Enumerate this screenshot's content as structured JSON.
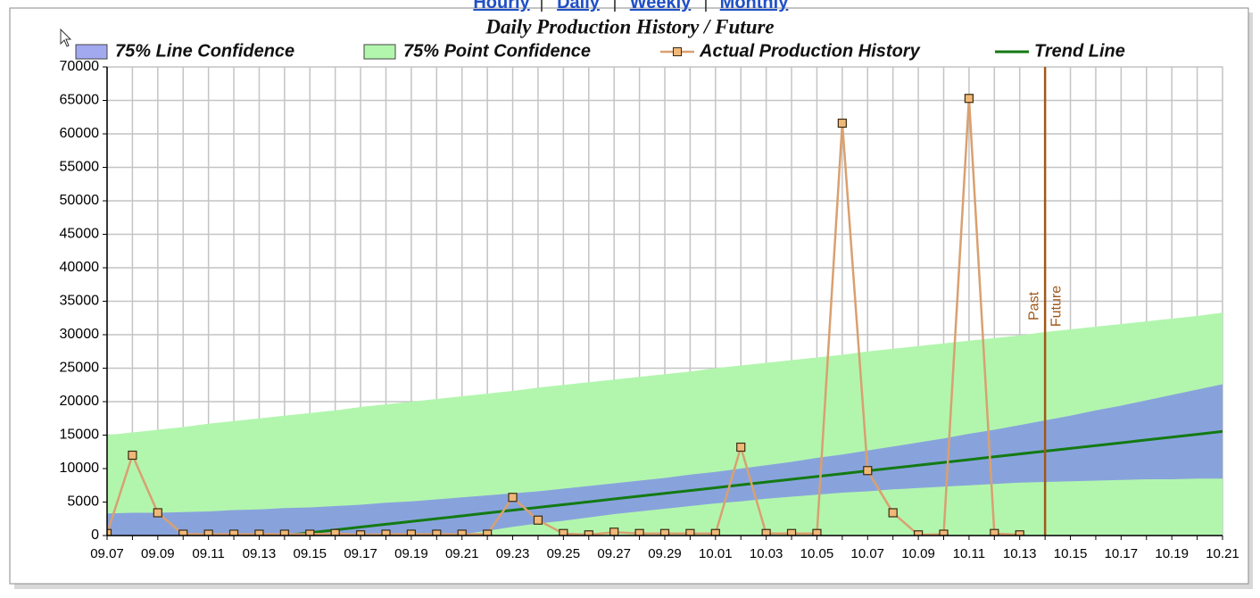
{
  "nav_links": [
    "Hourly",
    "Daily",
    "Weekly",
    "Monthly"
  ],
  "nav_separator": "|",
  "chart_data": {
    "type": "line",
    "title": "Daily Production History / Future",
    "categories": [
      "09.07",
      null,
      "09.09",
      null,
      "09.11",
      null,
      "09.13",
      null,
      "09.15",
      null,
      "09.17",
      null,
      "09.19",
      null,
      "09.21",
      null,
      "09.23",
      null,
      "09.25",
      null,
      "09.27",
      null,
      "09.29",
      null,
      "10.01",
      null,
      "10.03",
      null,
      "10.05",
      null,
      "10.07",
      null,
      "10.09",
      null,
      "10.11",
      null,
      "10.13",
      null,
      "10.15",
      null,
      "10.17",
      null,
      "10.19",
      null,
      "10.21"
    ],
    "ylim": [
      0,
      70000
    ],
    "yticks": [
      0,
      5000,
      10000,
      15000,
      20000,
      25000,
      30000,
      35000,
      40000,
      45000,
      50000,
      55000,
      60000,
      65000,
      70000
    ],
    "grid": true,
    "series": [
      {
        "name": "75% Line Confidence",
        "kind": "band",
        "color": "#88a3dc",
        "legend_color": "#a3a9ee",
        "values": [
          3300,
          3400,
          3400,
          3500,
          3600,
          3800,
          3900,
          4100,
          4200,
          4400,
          4600,
          4900,
          5100,
          5400,
          5700,
          6000,
          6300,
          6600,
          7000,
          7400,
          7800,
          8200,
          8600,
          9100,
          9500,
          10000,
          10500,
          11000,
          11600,
          12100,
          12700,
          13300,
          13900,
          14500,
          15200,
          15800,
          16500,
          17200,
          17900,
          18700,
          19400,
          20200,
          21000,
          21800,
          22600
        ],
        "lower": [
          0,
          0,
          0,
          0,
          0,
          0,
          0,
          0,
          0,
          0,
          0,
          0,
          0,
          0,
          200,
          700,
          1300,
          1800,
          2200,
          2700,
          3200,
          3600,
          4000,
          4400,
          4800,
          5100,
          5500,
          5800,
          6100,
          6400,
          6600,
          6900,
          7100,
          7300,
          7500,
          7700,
          7900,
          8000,
          8100,
          8200,
          8300,
          8400,
          8400,
          8500,
          8500
        ]
      },
      {
        "name": "75% Point Confidence",
        "kind": "band",
        "color": "#b2f6ae",
        "legend_color": "#b2f6ae",
        "values": [
          15000,
          15400,
          15800,
          16200,
          16700,
          17100,
          17500,
          17900,
          18300,
          18700,
          19200,
          19600,
          20000,
          20400,
          20800,
          21200,
          21600,
          22100,
          22500,
          22900,
          23300,
          23700,
          24100,
          24500,
          25000,
          25400,
          25800,
          26200,
          26600,
          27000,
          27500,
          27900,
          28300,
          28700,
          29100,
          29500,
          29900,
          30400,
          30800,
          31200,
          31600,
          32000,
          32400,
          32800,
          33300
        ]
      },
      {
        "name": "Actual Production History",
        "kind": "line-markers",
        "color": "#d9a070",
        "marker_color": "#f0b878",
        "values": [
          300,
          12000,
          3400,
          200,
          200,
          200,
          200,
          200,
          200,
          300,
          100,
          200,
          200,
          200,
          200,
          200,
          5700,
          2300,
          300,
          100,
          500,
          300,
          300,
          300,
          300,
          13200,
          300,
          300,
          300,
          61600,
          9700,
          3400,
          100,
          200,
          65300,
          300,
          100,
          null,
          null,
          null,
          null,
          null,
          null,
          null,
          null
        ]
      },
      {
        "name": "Trend Line",
        "kind": "line",
        "color": "#137a13",
        "values": [
          null,
          null,
          null,
          null,
          null,
          null,
          null,
          0,
          420,
          840,
          1260,
          1680,
          2100,
          2520,
          2940,
          3360,
          3780,
          4200,
          4620,
          5040,
          5460,
          5880,
          6300,
          6720,
          7140,
          7560,
          7980,
          8400,
          8820,
          9240,
          9660,
          10080,
          10500,
          10920,
          11340,
          11760,
          12180,
          12600,
          13020,
          13440,
          13860,
          14280,
          14700,
          15120,
          15540
        ]
      }
    ],
    "marker": {
      "category_index": 37,
      "labels": [
        "Past",
        "Future"
      ],
      "color": "#a0581a"
    }
  }
}
